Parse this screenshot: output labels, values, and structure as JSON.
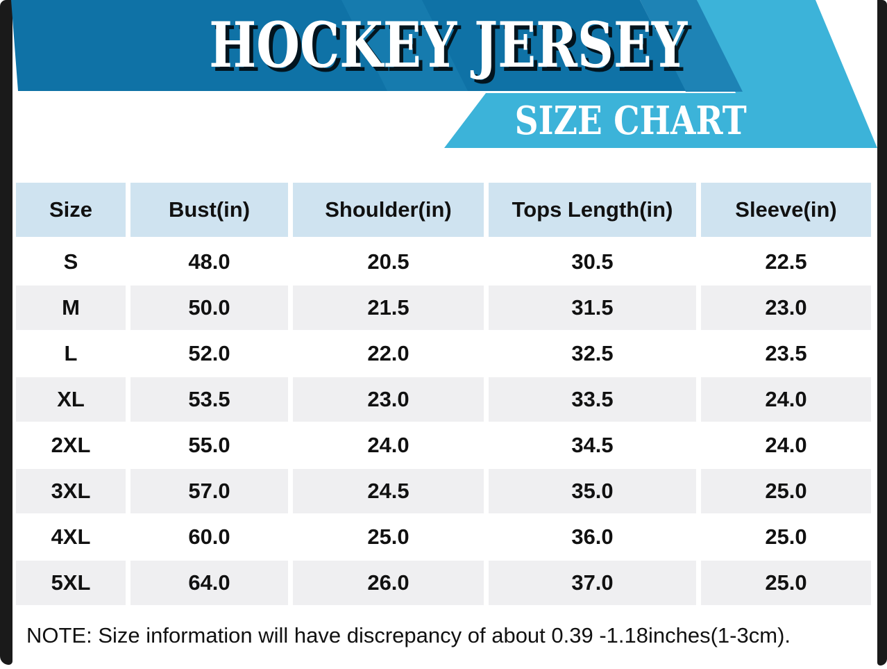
{
  "header": {
    "title": "HOCKEY JERSEY",
    "subtitle": "SIZE CHART"
  },
  "table": {
    "columns": [
      "Size",
      "Bust(in)",
      "Shoulder(in)",
      "Tops Length(in)",
      "Sleeve(in)"
    ],
    "rows": [
      [
        "S",
        "48.0",
        "20.5",
        "30.5",
        "22.5"
      ],
      [
        "M",
        "50.0",
        "21.5",
        "31.5",
        "23.0"
      ],
      [
        "L",
        "52.0",
        "22.0",
        "32.5",
        "23.5"
      ],
      [
        "XL",
        "53.5",
        "23.0",
        "33.5",
        "24.0"
      ],
      [
        "2XL",
        "55.0",
        "24.0",
        "34.5",
        "24.0"
      ],
      [
        "3XL",
        "57.0",
        "24.5",
        "35.0",
        "25.0"
      ],
      [
        "4XL",
        "60.0",
        "25.0",
        "36.0",
        "25.0"
      ],
      [
        "5XL",
        "64.0",
        "26.0",
        "37.0",
        "25.0"
      ]
    ]
  },
  "note": "NOTE: Size information will have discrepancy of about 0.39 -1.18inches(1-3cm).",
  "colors": {
    "dark": "#0f72a6",
    "medium": "#1e83b5",
    "light": "#3cb3d9",
    "headrow": "#cfe3f0",
    "altrow": "#efeff1",
    "frame": "#1a1a1a"
  },
  "chart_data": {
    "type": "table",
    "title": "HOCKEY JERSEY",
    "subtitle": "SIZE CHART",
    "columns": [
      "Size",
      "Bust(in)",
      "Shoulder(in)",
      "Tops Length(in)",
      "Sleeve(in)"
    ],
    "rows": [
      [
        "S",
        48.0,
        20.5,
        30.5,
        22.5
      ],
      [
        "M",
        50.0,
        21.5,
        31.5,
        23.0
      ],
      [
        "L",
        52.0,
        22.0,
        32.5,
        23.5
      ],
      [
        "XL",
        53.5,
        23.0,
        33.5,
        24.0
      ],
      [
        "2XL",
        55.0,
        24.0,
        34.5,
        24.0
      ],
      [
        "3XL",
        57.0,
        24.5,
        35.0,
        25.0
      ],
      [
        "4XL",
        60.0,
        25.0,
        36.0,
        25.0
      ],
      [
        "5XL",
        64.0,
        26.0,
        37.0,
        25.0
      ]
    ],
    "note": "NOTE: Size information will have discrepancy of about 0.39 -1.18inches(1-3cm)."
  }
}
